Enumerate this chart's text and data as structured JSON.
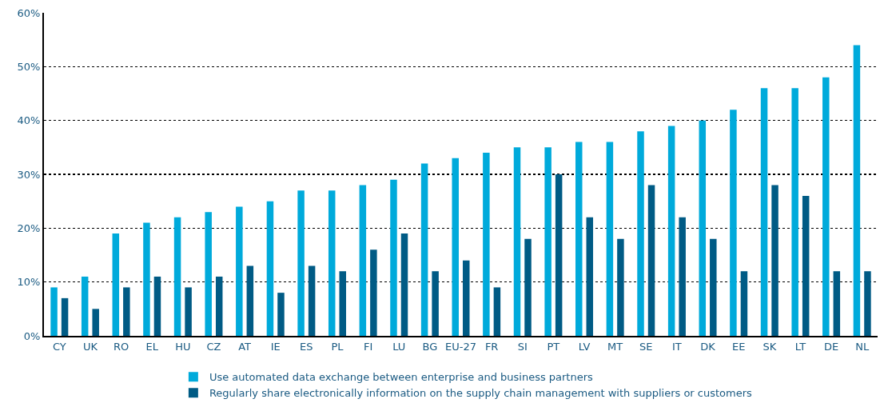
{
  "chart_data": {
    "type": "bar",
    "categories": [
      "CY",
      "UK",
      "RO",
      "EL",
      "HU",
      "CZ",
      "AT",
      "IE",
      "ES",
      "PL",
      "FI",
      "LU",
      "BG",
      "EU-27",
      "FR",
      "SI",
      "PT",
      "LV",
      "MT",
      "SE",
      "IT",
      "DK",
      "EE",
      "SK",
      "LT",
      "DE",
      "NL"
    ],
    "series": [
      {
        "name": "Use automated data exchange between enterprise and business partners",
        "color": "#00aadb",
        "values": [
          9,
          11,
          19,
          21,
          22,
          23,
          24,
          25,
          27,
          27,
          28,
          29,
          32,
          33,
          34,
          35,
          35,
          36,
          36,
          38,
          39,
          40,
          42,
          46,
          46,
          48,
          54
        ]
      },
      {
        "name": "Regularly share electronically information on the supply chain management with suppliers or customers",
        "color": "#005b85",
        "values": [
          7,
          5,
          9,
          11,
          9,
          11,
          13,
          8,
          13,
          12,
          16,
          19,
          12,
          14,
          9,
          18,
          30,
          22,
          18,
          28,
          22,
          18,
          12,
          28,
          26,
          12,
          12
        ]
      }
    ],
    "ylim": [
      0,
      60
    ],
    "yticks": [
      {
        "value": 0,
        "label": "0%"
      },
      {
        "value": 10,
        "label": "10%"
      },
      {
        "value": 20,
        "label": "20%"
      },
      {
        "value": 30,
        "label": "30%"
      },
      {
        "value": 40,
        "label": "40%"
      },
      {
        "value": 50,
        "label": "50%"
      },
      {
        "value": 60,
        "label": "60%"
      }
    ],
    "grid": "y",
    "legend": "bottom"
  }
}
